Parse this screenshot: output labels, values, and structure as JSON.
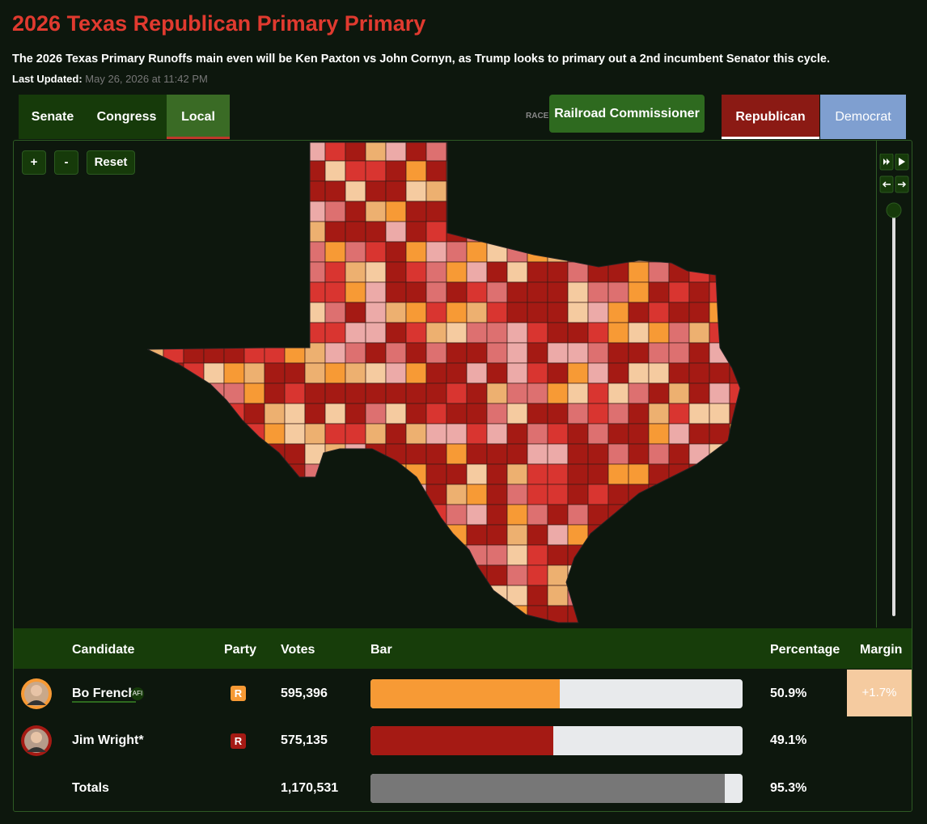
{
  "header": {
    "title": "2026 Texas Republican Primary Primary",
    "subtitle": "The 2026 Texas Primary Runoffs main even will be Ken Paxton vs John Cornyn, as Trump looks to primary out a 2nd incumbent Senator this cycle.",
    "last_updated_label": "Last Updated:",
    "last_updated": "May 26, 2026 at 11:42 PM"
  },
  "tabs": [
    "Senate",
    "Congress",
    "Local"
  ],
  "race_label": "RACE",
  "race": "Railroad Commissioner",
  "party_tabs": [
    "Republican",
    "Democrat"
  ],
  "map_controls": [
    "+",
    "-",
    "Reset"
  ],
  "table": {
    "columns": [
      "Candidate",
      "Party",
      "Votes",
      "Bar",
      "Percentage",
      "Margin"
    ],
    "rows": [
      {
        "candidate": "Bo French",
        "tag": "AFI",
        "party": "R",
        "votes": "595,396",
        "percentage": {
          "value": 50.9,
          "label": "50.9%"
        },
        "bar_color": "#f79a35",
        "margin": "+1.7%"
      },
      {
        "candidate": "Jim Wright*",
        "party": "R",
        "votes": "575,135",
        "percentage": {
          "value": 49.1,
          "label": "49.1%"
        },
        "bar_color": "#a51a14"
      }
    ],
    "totals": {
      "label": "Totals",
      "votes": "1,170,531",
      "percentage": {
        "value": 95.3,
        "label": "95.3%"
      },
      "bar_color": "#777777"
    }
  }
}
